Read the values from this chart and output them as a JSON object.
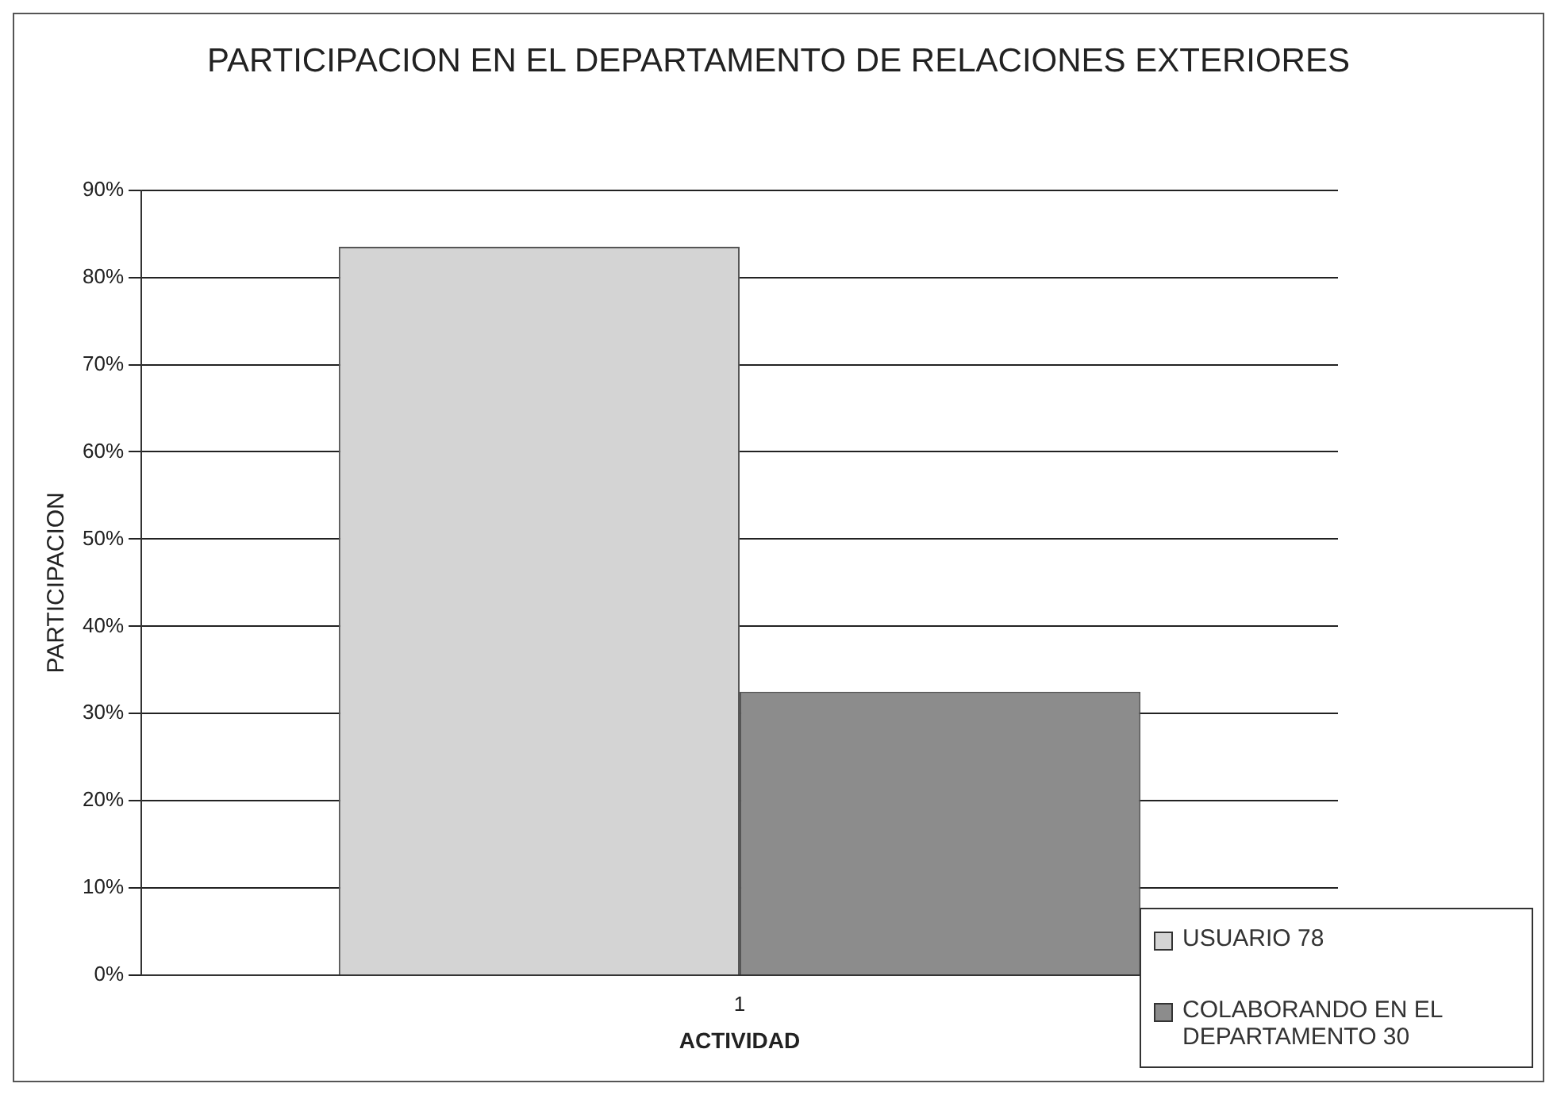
{
  "chart_data": {
    "type": "bar",
    "title": "PARTICIPACION EN EL DEPARTAMENTO DE RELACIONES EXTERIORES",
    "xlabel": "ACTIVIDAD",
    "ylabel": "PARTICIPACION",
    "categories": [
      "1"
    ],
    "series": [
      {
        "name": "USUARIO 78",
        "color": "#d4d4d4",
        "values": [
          83.5
        ]
      },
      {
        "name": "COLABORANDO EN EL DEPARTAMENTO 30",
        "color": "#8c8c8c",
        "values": [
          32.5
        ]
      }
    ],
    "ylim": [
      0,
      90
    ],
    "yticks": [
      {
        "value": 0,
        "label": "0%"
      },
      {
        "value": 10,
        "label": "10%"
      },
      {
        "value": 20,
        "label": "20%"
      },
      {
        "value": 30,
        "label": "30%"
      },
      {
        "value": 40,
        "label": "40%"
      },
      {
        "value": 50,
        "label": "50%"
      },
      {
        "value": 60,
        "label": "60%"
      },
      {
        "value": 70,
        "label": "70%"
      },
      {
        "value": 80,
        "label": "80%"
      },
      {
        "value": 90,
        "label": "90%"
      }
    ],
    "grid": "y",
    "legend": "bottom right"
  }
}
